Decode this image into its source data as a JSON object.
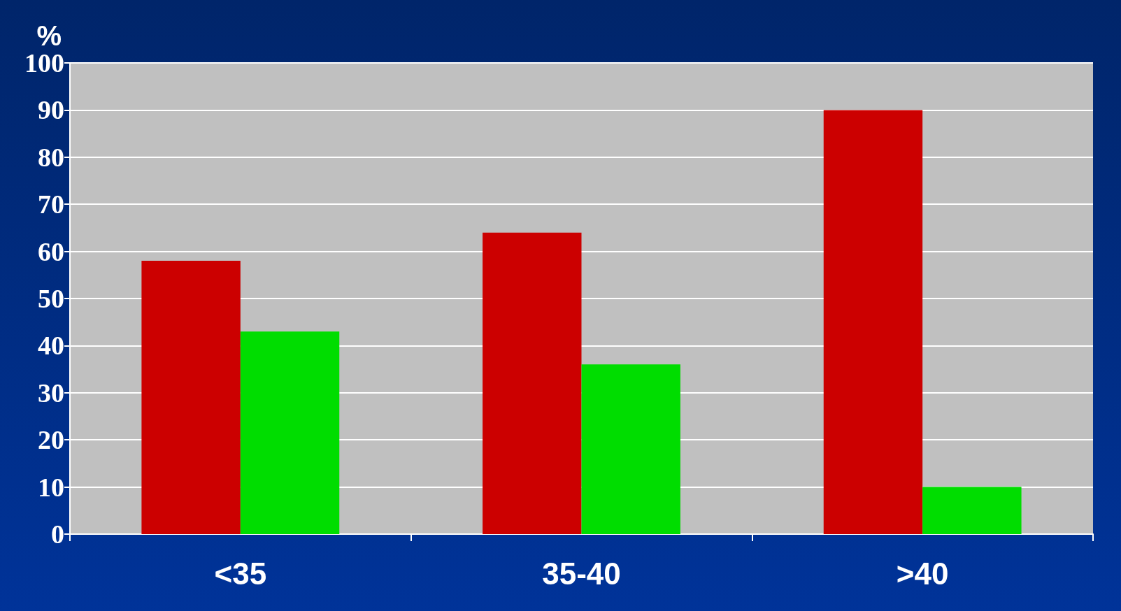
{
  "chart_data": {
    "type": "bar",
    "ylabel": "%",
    "categories": [
      "<35",
      "35-40",
      ">40"
    ],
    "series": [
      {
        "color": "#cc0000",
        "values": [
          58,
          64,
          90
        ]
      },
      {
        "color": "#00dd00",
        "values": [
          43,
          36,
          10
        ]
      }
    ],
    "ylim": [
      0,
      100
    ],
    "yticks": [
      0,
      10,
      20,
      30,
      40,
      50,
      60,
      70,
      80,
      90,
      100
    ],
    "grid": "y"
  }
}
